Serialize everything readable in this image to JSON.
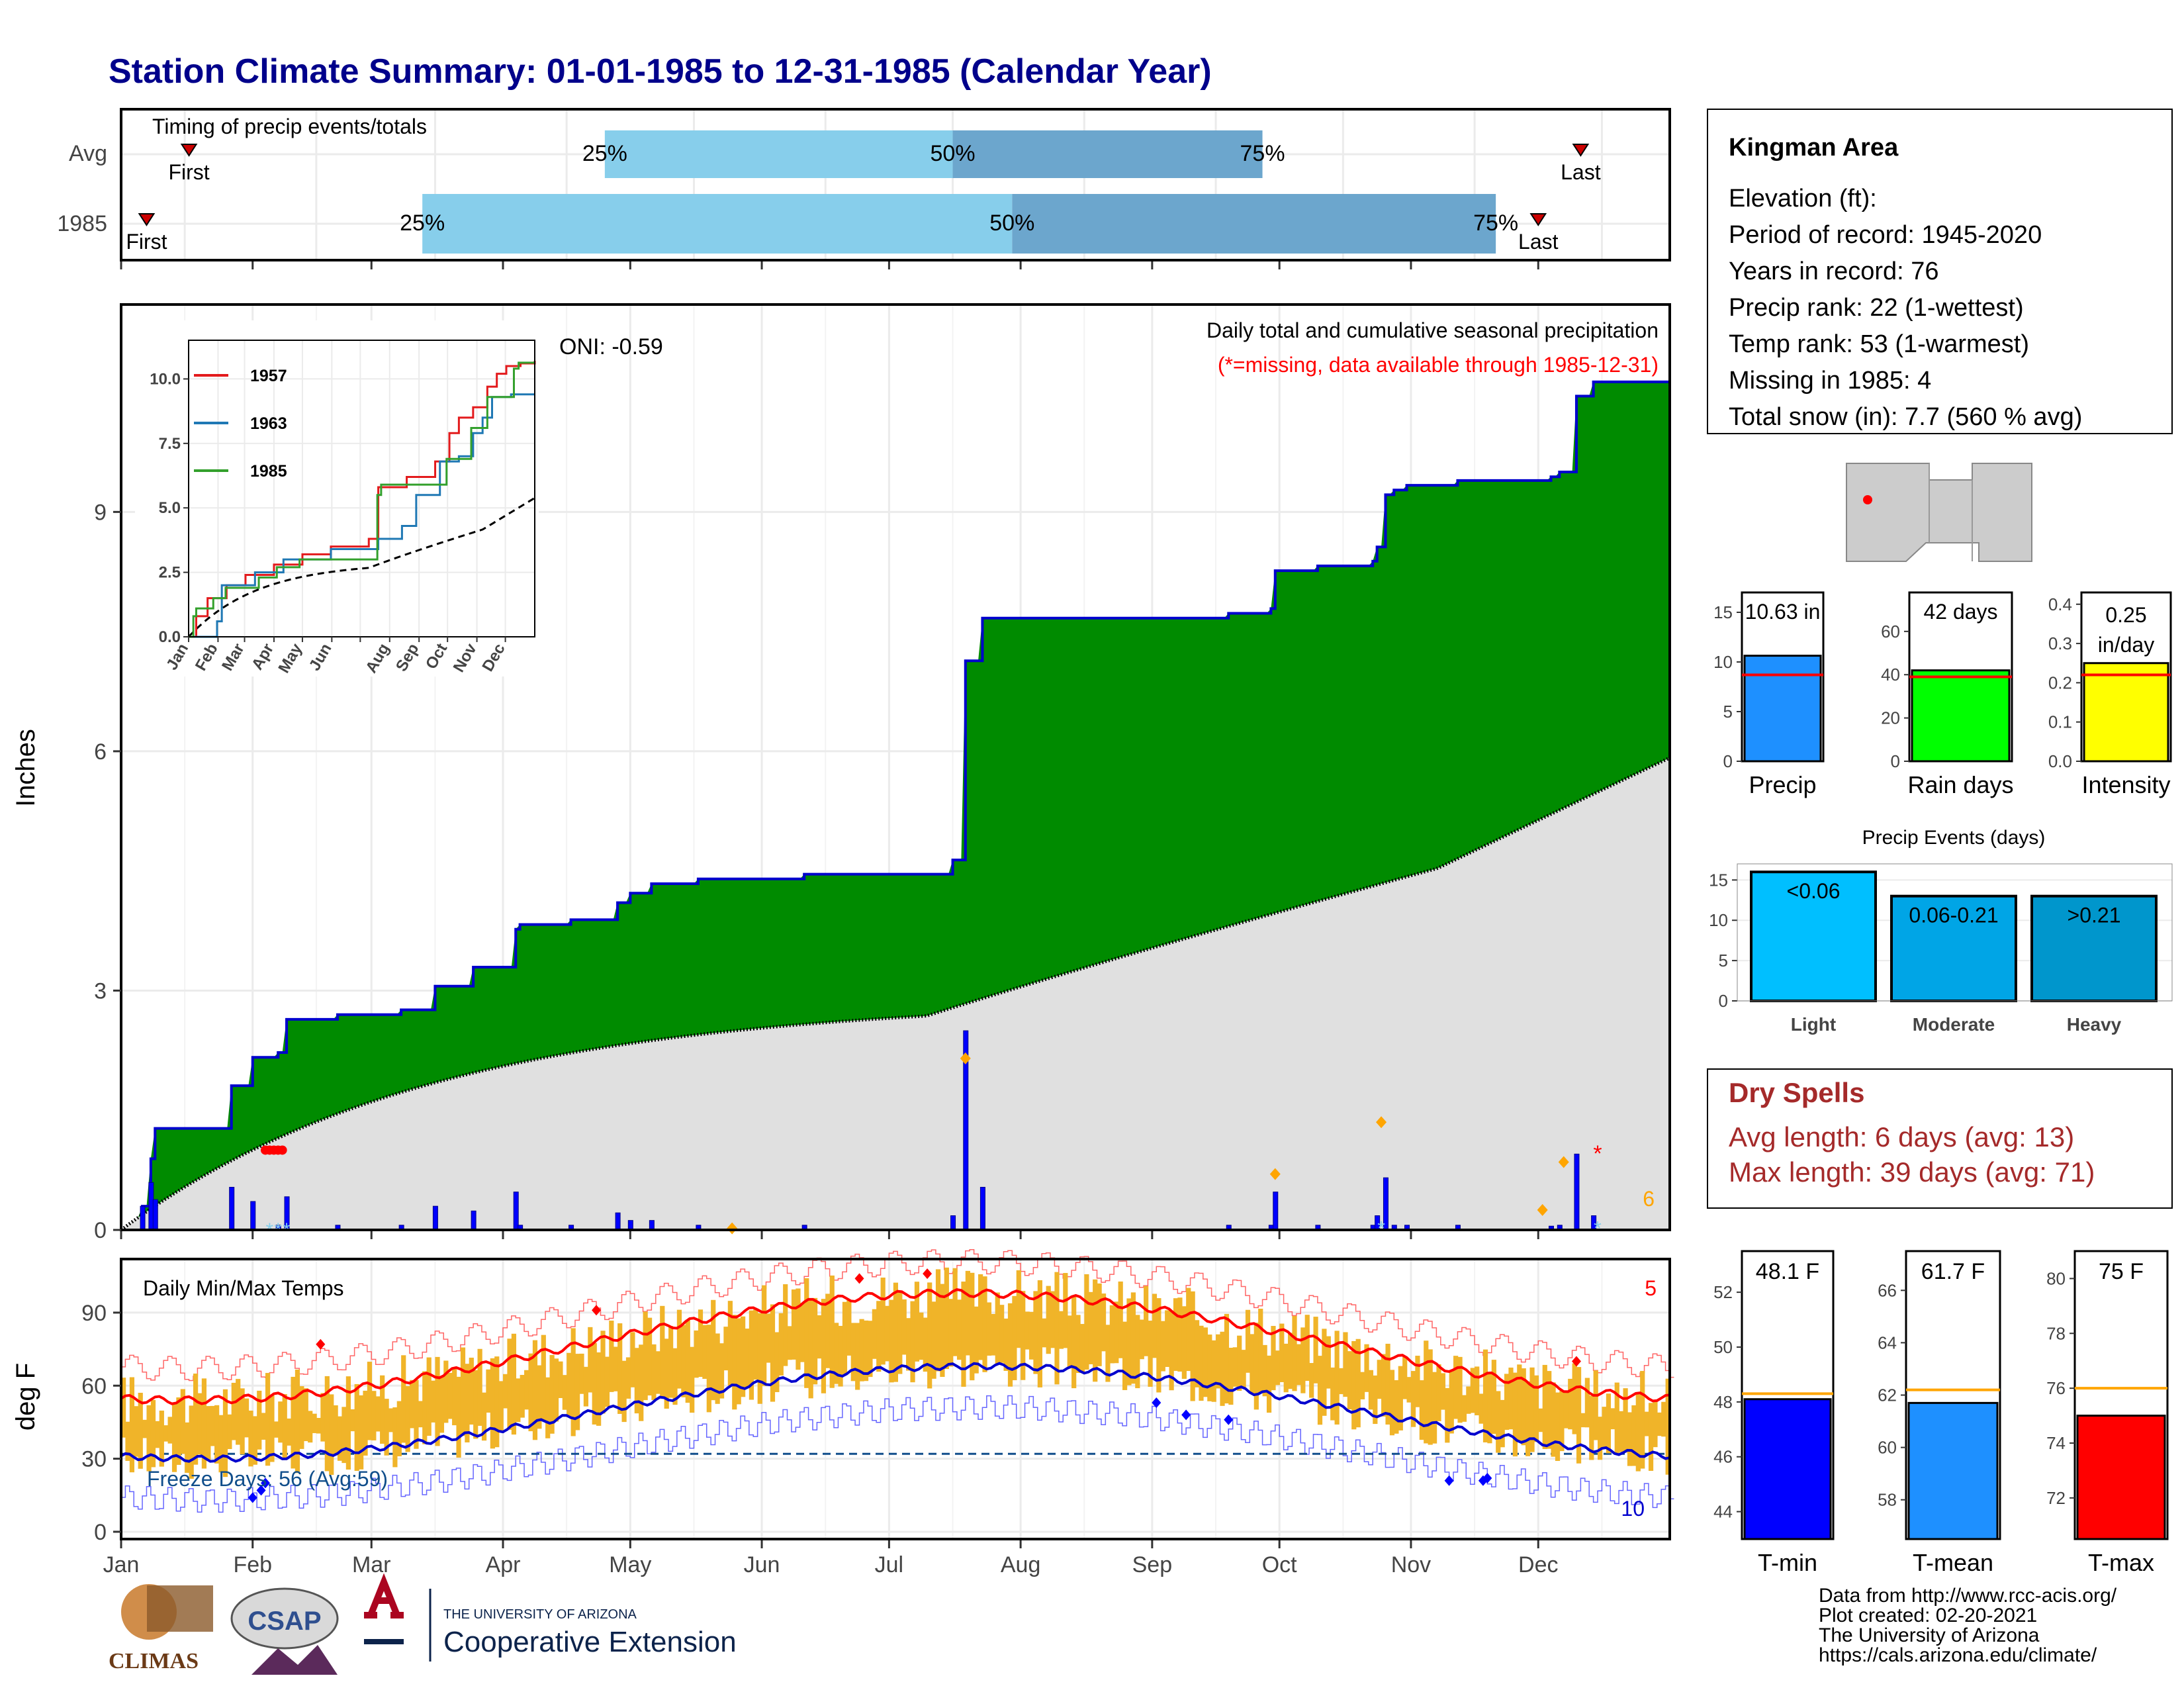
{
  "title": "Station Climate Summary: 01-01-1985 to 12-31-1985 (Calendar Year)",
  "months": [
    "Jan",
    "Feb",
    "Mar",
    "Apr",
    "May",
    "Jun",
    "Jul",
    "Aug",
    "Sep",
    "Oct",
    "Nov",
    "Dec"
  ],
  "timing": {
    "label": "Timing of precip events/totals",
    "rows": [
      {
        "name": "Avg",
        "first_doy": 16,
        "q25_doy": 114,
        "q50_doy": 196,
        "q75_doy": 269,
        "last_doy": 344,
        "first_label": "First",
        "last_label": "Last",
        "q25_label": "25%",
        "q50_label": "50%",
        "q75_label": "75%"
      },
      {
        "name": "1985",
        "first_doy": 6,
        "q25_doy": 71,
        "q50_doy": 210,
        "q75_doy": 324,
        "last_doy": 334,
        "first_label": "First",
        "last_label": "Last",
        "q25_label": "25%",
        "q50_label": "50%",
        "q75_label": "75%"
      }
    ],
    "colors": {
      "early": "#87ceeb",
      "late": "#6ca6cd",
      "marker": "#cc0000"
    }
  },
  "precip_panel": {
    "ylabel": "Inches",
    "yticks": [
      0,
      3,
      6,
      9
    ],
    "ymax": 10.63,
    "title_line1": "Daily total and cumulative seasonal precipitation",
    "title_line2": "(*=missing, data available through 1985-12-31)",
    "oni": "ONI: -0.59",
    "missing_count": "6",
    "colors": {
      "surplus": "#008b00",
      "normal": "#e0e0e0",
      "line": "#0000cd",
      "bars": "#0000ff",
      "avg_line": "#000000"
    }
  },
  "inset": {
    "yticks": [
      "0.0",
      "2.5",
      "5.0",
      "7.5",
      "10.0"
    ],
    "legend": [
      {
        "name": "1957",
        "color": "#e31a1c"
      },
      {
        "name": "1963",
        "color": "#1f78b4"
      },
      {
        "name": "1985",
        "color": "#33a02c"
      }
    ]
  },
  "temp_panel": {
    "ylabel": "deg F",
    "title": "Daily Min/Max Temps",
    "yticks": [
      0,
      30,
      60,
      90
    ],
    "freeze_label": "Freeze Days: 56 (Avg:59)",
    "record_high_count": "5",
    "record_low_count": "10",
    "colors": {
      "bars": "#f0b429",
      "max_norm": "#ff0000",
      "min_norm": "#0000cd"
    }
  },
  "station": {
    "name": "Kingman Area",
    "elevation": "Elevation (ft):",
    "period": "Period of record: 1945-2020",
    "years": "Years in record: 76",
    "precip_rank": "Precip rank: 22 (1-wettest)",
    "temp_rank": "Temp rank: 53 (1-warmest)",
    "missing": "Missing in 1985: 4",
    "snow": "Total snow (in): 7.7 (560 % avg)"
  },
  "summary_bars": [
    {
      "label": "Precip",
      "value_label": "10.63 in",
      "value": 10.63,
      "avg": 8.7,
      "ymax": 17,
      "yticks": [
        0,
        5,
        10,
        15
      ],
      "color": "#1e90ff"
    },
    {
      "label": "Rain days",
      "value_label": "42 days",
      "value": 42,
      "avg": 39,
      "ymax": 78,
      "yticks": [
        0,
        20,
        40,
        60
      ],
      "color": "#00ff00"
    },
    {
      "label": "Intensity",
      "value_label": "0.25 in/day",
      "value": 0.25,
      "avg": 0.22,
      "ymax": 0.43,
      "yticks": [
        "0.0",
        "0.1",
        "0.2",
        "0.3",
        "0.4"
      ],
      "color": "#ffff00"
    }
  ],
  "precip_events": {
    "title": "Precip Events (days)",
    "yticks": [
      0,
      5,
      10,
      15
    ],
    "categories": [
      {
        "name": "Light",
        "range": "<0.06",
        "value": 16,
        "color": "#00bfff"
      },
      {
        "name": "Moderate",
        "range": "0.06-0.21",
        "value": 13,
        "color": "#00a5e6"
      },
      {
        "name": "Heavy",
        "range": ">0.21",
        "value": 13,
        "color": "#0096cc"
      }
    ]
  },
  "dry_spells": {
    "title": "Dry Spells",
    "avg_length": "Avg length: 6 days (avg: 13)",
    "max_length": "Max length: 39 days (avg: 71)"
  },
  "temp_bars": [
    {
      "label": "T-min",
      "value_label": "48.1 F",
      "value": 48.1,
      "avg": 48.3,
      "ymin": 43,
      "ymax": 53.5,
      "yticks": [
        44,
        46,
        48,
        50,
        52
      ],
      "color": "#0000ff"
    },
    {
      "label": "T-mean",
      "value_label": "61.7 F",
      "value": 61.7,
      "avg": 62.2,
      "ymin": 56.5,
      "ymax": 67.5,
      "yticks": [
        58,
        60,
        62,
        64,
        66
      ],
      "color": "#1e90ff"
    },
    {
      "label": "T-max",
      "value_label": "75 F",
      "value": 75,
      "avg": 76,
      "ymin": 70.5,
      "ymax": 81,
      "yticks": [
        72,
        74,
        76,
        78,
        80
      ],
      "color": "#ff0000"
    }
  ],
  "footer": {
    "line1": "Data from http://www.rcc-acis.org/",
    "line2": "Plot created: 02-20-2021",
    "line3": "The University of Arizona",
    "line4": "https://cals.arizona.edu/climate/",
    "climas": "CLIMAS",
    "csap": "CSAP",
    "ua_small": "THE UNIVERSITY OF ARIZONA",
    "ua_big": "Cooperative Extension"
  }
}
